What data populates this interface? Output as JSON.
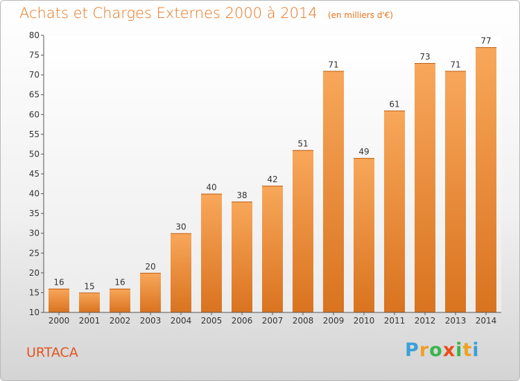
{
  "header": {
    "title": "Achats et Charges Externes 2000 à 2014",
    "subtitle": "(en milliers d'€)"
  },
  "commune": "URTACA",
  "logo": {
    "letters": [
      "P",
      "r",
      "o",
      "x",
      "i",
      "t",
      "i"
    ]
  },
  "colors": {
    "title": "#e8731a",
    "bar_light": "#f8a75a",
    "bar_dark": "#d9731f",
    "commune": "#e0541e"
  },
  "chart_data": {
    "type": "bar",
    "title": "Achats et Charges Externes 2000 à 2014",
    "subtitle": "(en milliers d'€)",
    "xlabel": "",
    "ylabel": "",
    "categories": [
      "2000",
      "2001",
      "2002",
      "2003",
      "2004",
      "2005",
      "2006",
      "2007",
      "2008",
      "2009",
      "2010",
      "2011",
      "2012",
      "2013",
      "2014"
    ],
    "values": [
      16,
      15,
      16,
      20,
      30,
      40,
      38,
      42,
      51,
      71,
      49,
      61,
      73,
      71,
      77
    ],
    "ylim": [
      10,
      80
    ],
    "yticks": [
      "10",
      "15",
      "20",
      "25",
      "30",
      "35",
      "40",
      "45",
      "50",
      "55",
      "60",
      "65",
      "70",
      "75",
      "80"
    ],
    "grid": false,
    "legend": "none"
  }
}
